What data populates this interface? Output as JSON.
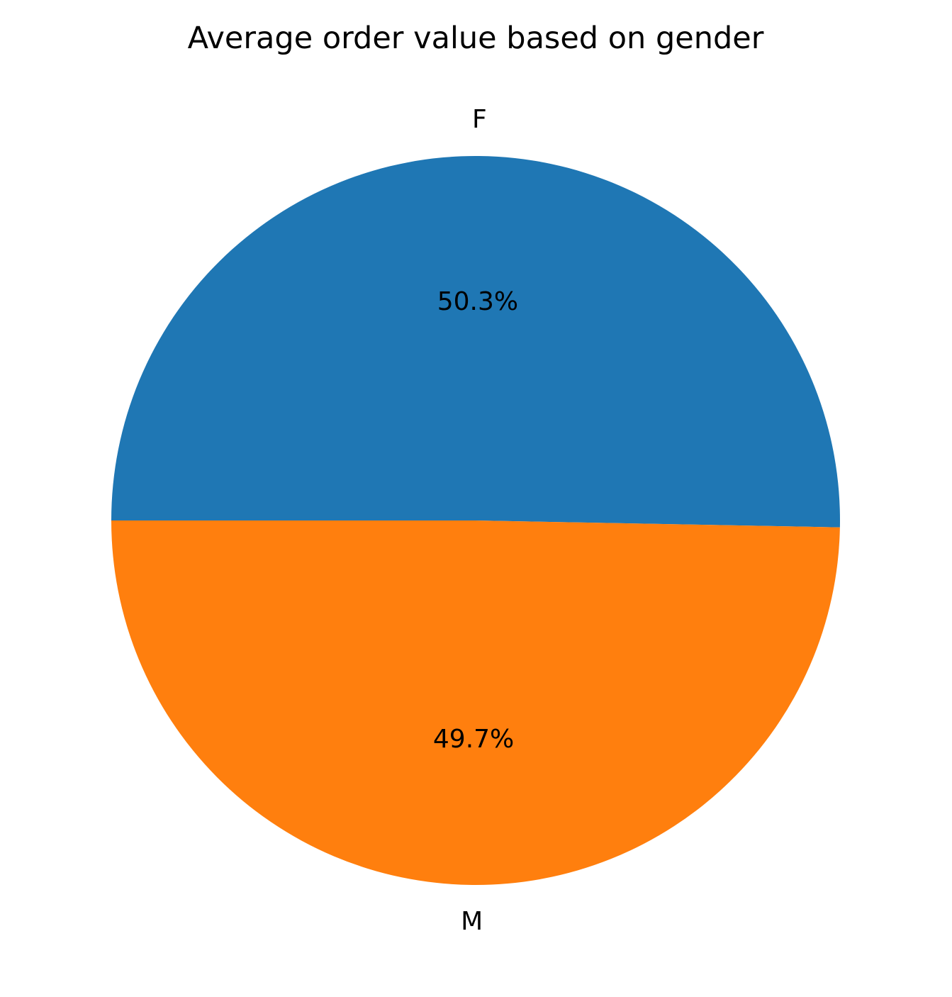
{
  "chart_data": {
    "type": "pie",
    "title": "Average order value based on gender",
    "start_angle_deg": -1.08,
    "direction": "counterclockwise",
    "slices": [
      {
        "label": "F",
        "value": 50.3,
        "pct_label": "50.3%",
        "color": "#1f77b4"
      },
      {
        "label": "M",
        "value": 49.7,
        "pct_label": "49.7%",
        "color": "#ff7f0e"
      }
    ]
  }
}
